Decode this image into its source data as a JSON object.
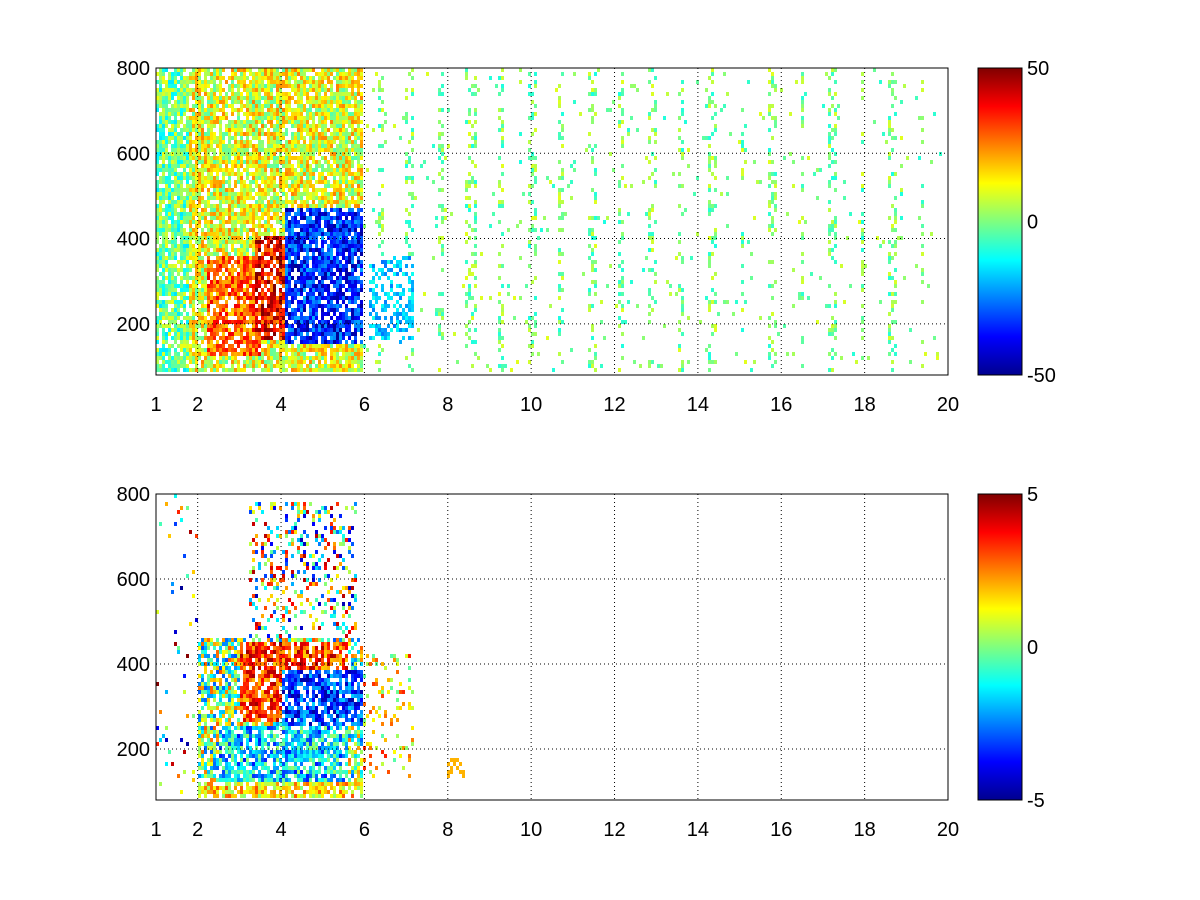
{
  "chart_data": [
    {
      "type": "heatmap",
      "title": "",
      "xlabel": "",
      "ylabel": "",
      "xlim": [
        1,
        20
      ],
      "ylim": [
        80,
        800
      ],
      "x_ticks": [
        1,
        2,
        4,
        6,
        8,
        10,
        12,
        14,
        16,
        18,
        20
      ],
      "y_ticks": [
        200,
        400,
        600,
        800
      ],
      "grid": true,
      "colorbar": {
        "colormap": "jet",
        "range": [
          -50,
          50
        ],
        "ticks": [
          -50,
          0,
          50
        ],
        "location": "right"
      },
      "data_description_regions": [
        {
          "x": [
            1.0,
            6.0
          ],
          "y": [
            80,
            800
          ],
          "approx_value": 10,
          "note": "dense broadband field"
        },
        {
          "x": [
            2.2,
            3.4
          ],
          "y": [
            150,
            350
          ],
          "approx_value": 30
        },
        {
          "x": [
            3.4,
            4.6
          ],
          "y": [
            200,
            400
          ],
          "approx_value": 35
        },
        {
          "x": [
            4.2,
            6.0
          ],
          "y": [
            200,
            450
          ],
          "approx_value": -35
        },
        {
          "x": [
            6.0,
            20.0
          ],
          "y": [
            80,
            800
          ],
          "approx_value": 0,
          "note": "sparse columns near zero"
        }
      ]
    },
    {
      "type": "heatmap",
      "title": "",
      "xlabel": "",
      "ylabel": "",
      "xlim": [
        1,
        20
      ],
      "ylim": [
        80,
        800
      ],
      "x_ticks": [
        1,
        2,
        4,
        6,
        8,
        10,
        12,
        14,
        16,
        18,
        20
      ],
      "y_ticks": [
        200,
        400,
        600,
        800
      ],
      "grid": true,
      "colorbar": {
        "colormap": "jet",
        "range": [
          -5,
          5
        ],
        "ticks": [
          -5,
          0,
          5
        ],
        "location": "right"
      },
      "data_description_regions": [
        {
          "x": [
            2.0,
            6.0
          ],
          "y": [
            80,
            450
          ],
          "approx_value": 0,
          "note": "mixed signed values"
        },
        {
          "x": [
            3.0,
            5.5
          ],
          "y": [
            250,
            450
          ],
          "approx_value": 4
        },
        {
          "x": [
            4.0,
            6.0
          ],
          "y": [
            250,
            400
          ],
          "approx_value": -3
        },
        {
          "x": [
            2.5,
            5.5
          ],
          "y": [
            100,
            250
          ],
          "approx_value": -1
        },
        {
          "x": [
            6.0,
            7.2
          ],
          "y": [
            150,
            400
          ],
          "approx_value": 1
        }
      ]
    }
  ],
  "colors": {
    "background": "#ffffff",
    "axis": "#000000"
  }
}
